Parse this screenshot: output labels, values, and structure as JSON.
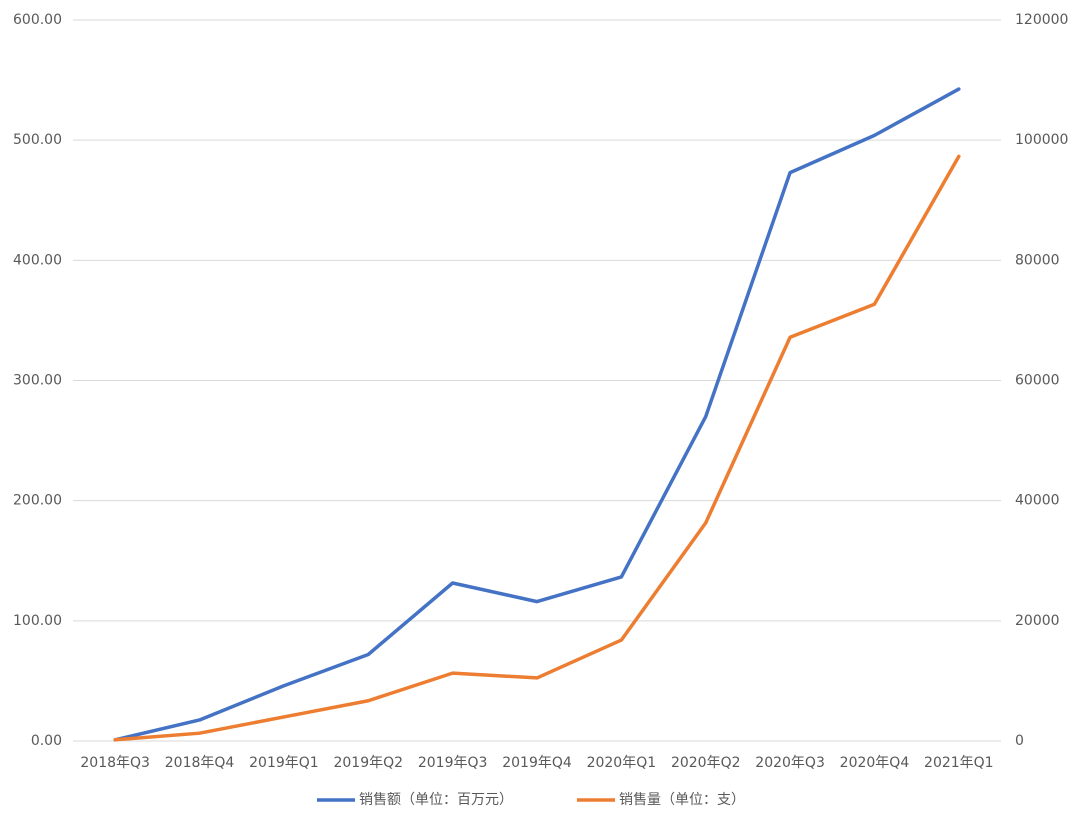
{
  "chart_data": {
    "type": "line",
    "categories": [
      "2018年Q3",
      "2018年Q4",
      "2019年Q1",
      "2019年Q2",
      "2019年Q3",
      "2019年Q4",
      "2020年Q1",
      "2020年Q2",
      "2020年Q3",
      "2020年Q4",
      "2021年Q1"
    ],
    "series": [
      {
        "name": "销售额（单位：百万元）",
        "color": "#4472c4",
        "values": [
          1,
          17.5,
          46,
          72,
          131.5,
          116,
          136.5,
          270,
          473,
          504,
          542.5
        ]
      },
      {
        "name": "销售量（单位：支）",
        "color": "#ed7d31",
        "axis": "y2",
        "values": [
          200,
          1300,
          4000,
          6700,
          11300,
          10500,
          16800,
          36300,
          67200,
          72700,
          97300
        ]
      }
    ],
    "ylim": [
      0,
      600
    ],
    "yticks": [
      {
        "value": 0,
        "label": "0.00"
      },
      {
        "value": 100,
        "label": "100.00"
      },
      {
        "value": 200,
        "label": "200.00"
      },
      {
        "value": 300,
        "label": "300.00"
      },
      {
        "value": 400,
        "label": "400.00"
      },
      {
        "value": 500,
        "label": "500.00"
      },
      {
        "value": 600,
        "label": "600.00"
      }
    ],
    "y2lim": [
      0,
      120000
    ],
    "y2ticks": [
      0,
      20000,
      40000,
      60000,
      80000,
      100000,
      120000
    ],
    "grid": true,
    "legend": "bottom"
  }
}
